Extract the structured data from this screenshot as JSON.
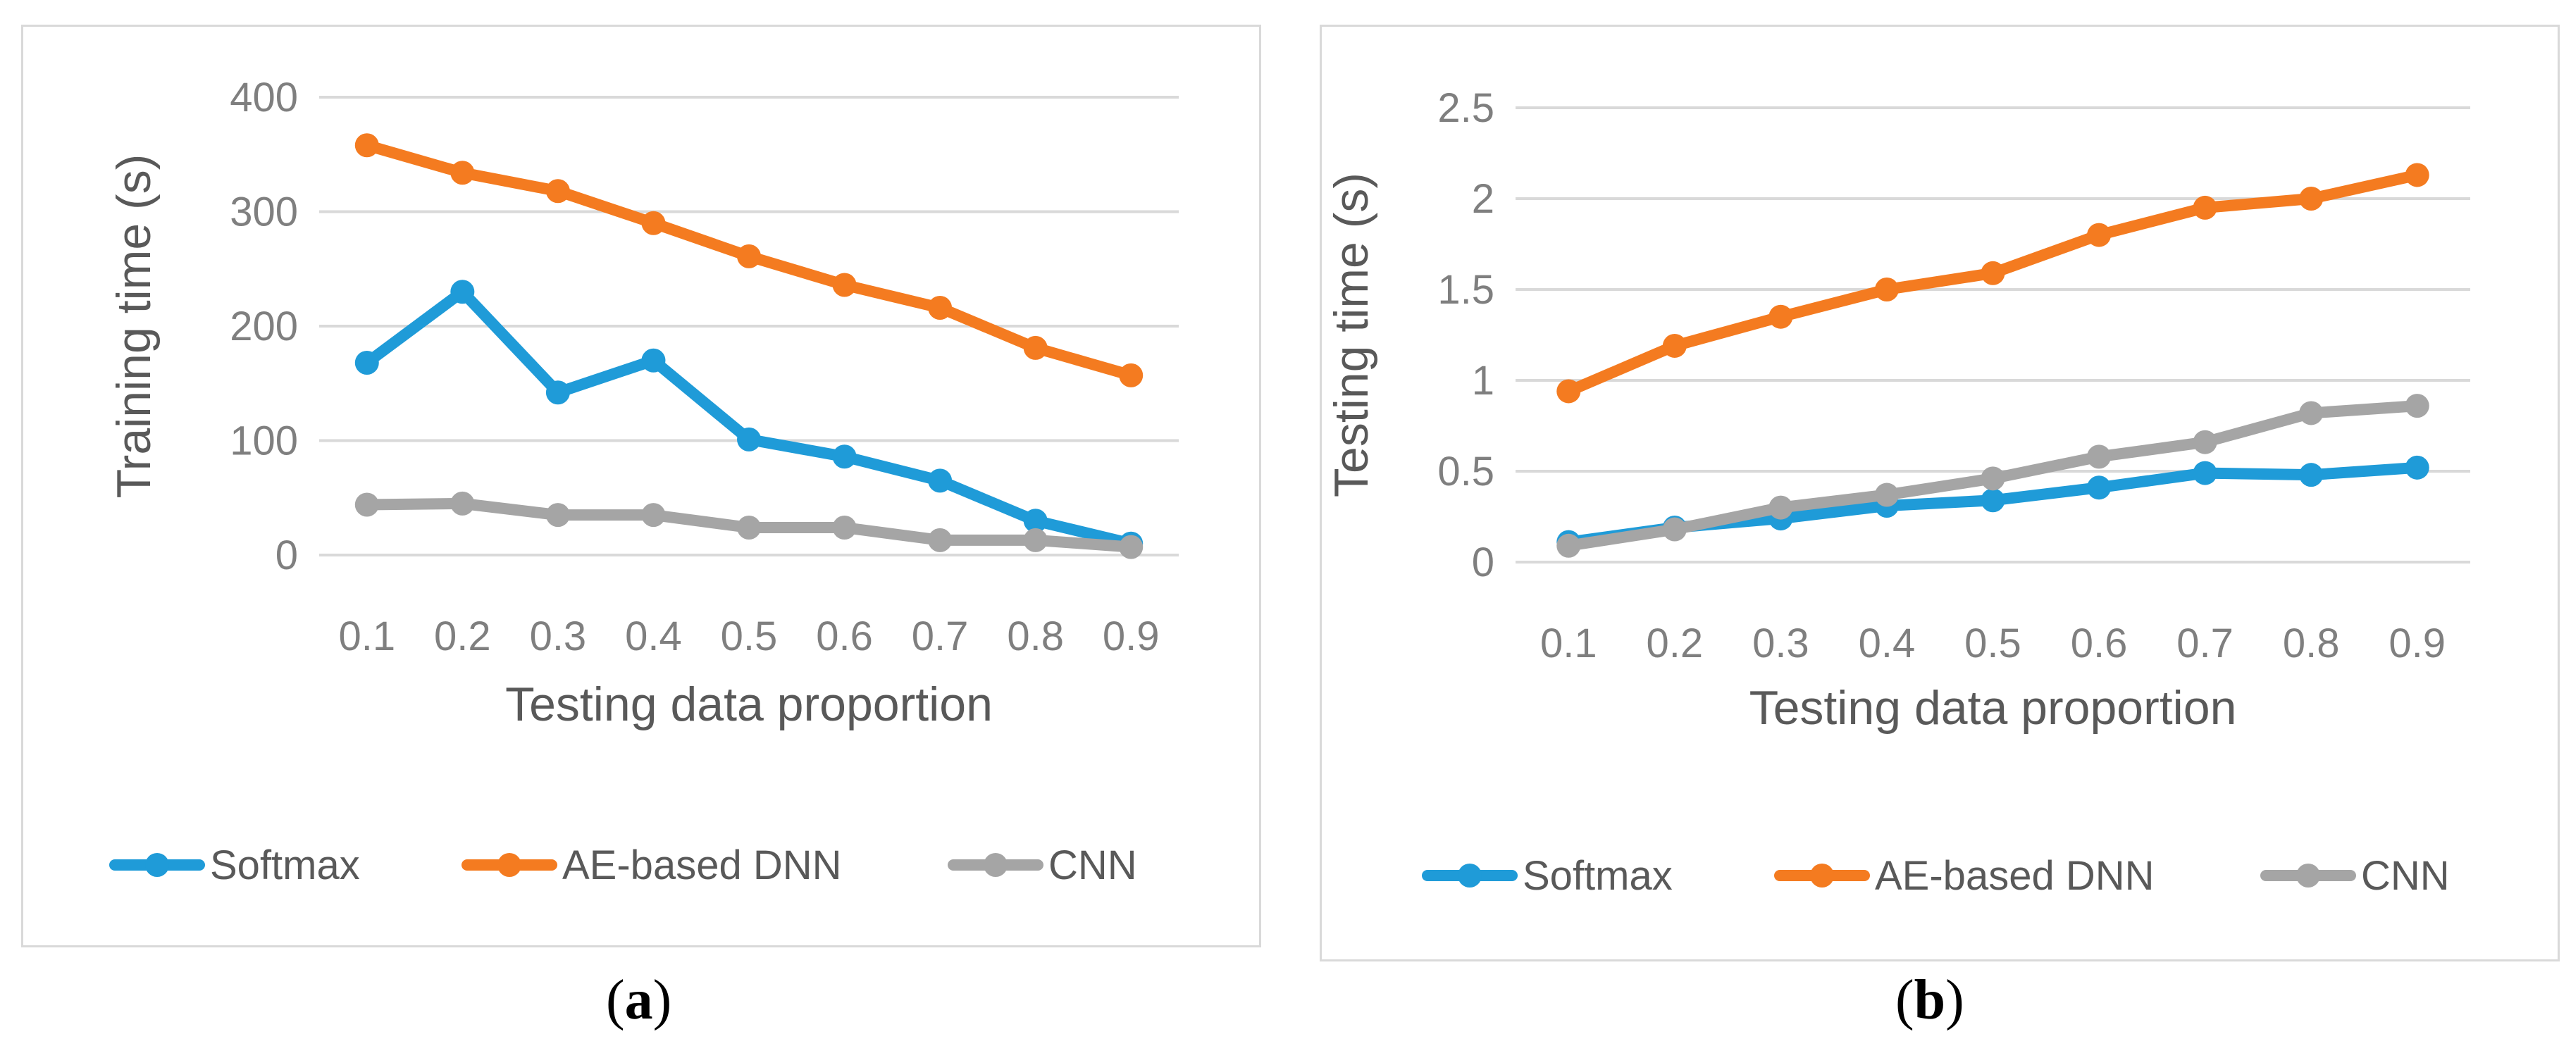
{
  "chart_data": [
    {
      "type": "line",
      "panel_label": "a",
      "title": "",
      "xlabel": "Testing data proportion",
      "ylabel": "Training time (s)",
      "categories": [
        "0.1",
        "0.2",
        "0.3",
        "0.4",
        "0.5",
        "0.6",
        "0.7",
        "0.8",
        "0.9"
      ],
      "yticks": [
        "0",
        "100",
        "200",
        "300",
        "400"
      ],
      "ylim": [
        0,
        400
      ],
      "grid": true,
      "legend_position": "bottom",
      "series": [
        {
          "name": "Softmax",
          "color": "#1f9bd8",
          "values": [
            168,
            230,
            142,
            170,
            101,
            86,
            65,
            30,
            10
          ]
        },
        {
          "name": "AE-based DNN",
          "color": "#f47b20",
          "values": [
            358,
            334,
            318,
            290,
            261,
            236,
            216,
            181,
            157
          ]
        },
        {
          "name": "CNN",
          "color": "#a5a5a5",
          "values": [
            44,
            45,
            35,
            35,
            24,
            24,
            13,
            13,
            7
          ]
        }
      ]
    },
    {
      "type": "line",
      "panel_label": "b",
      "title": "",
      "xlabel": "Testing data proportion",
      "ylabel": "Testing time (s)",
      "categories": [
        "0.1",
        "0.2",
        "0.3",
        "0.4",
        "0.5",
        "0.6",
        "0.7",
        "0.8",
        "0.9"
      ],
      "yticks": [
        "0",
        "0.5",
        "1",
        "1.5",
        "2",
        "2.5"
      ],
      "ylim": [
        0,
        2.5
      ],
      "grid": true,
      "legend_position": "bottom",
      "series": [
        {
          "name": "Softmax",
          "color": "#1f9bd8",
          "values": [
            0.11,
            0.19,
            0.24,
            0.31,
            0.34,
            0.41,
            0.49,
            0.48,
            0.52
          ]
        },
        {
          "name": "AE-based DNN",
          "color": "#f47b20",
          "values": [
            0.94,
            1.19,
            1.35,
            1.5,
            1.59,
            1.8,
            1.95,
            2.0,
            2.13
          ]
        },
        {
          "name": "CNN",
          "color": "#a5a5a5",
          "values": [
            0.09,
            0.18,
            0.3,
            0.37,
            0.46,
            0.58,
            0.66,
            0.82,
            0.86
          ]
        }
      ]
    }
  ],
  "captions": [
    {
      "open": "(",
      "label": "a",
      "close": ")"
    },
    {
      "open": "(",
      "label": "b",
      "close": ")"
    }
  ]
}
